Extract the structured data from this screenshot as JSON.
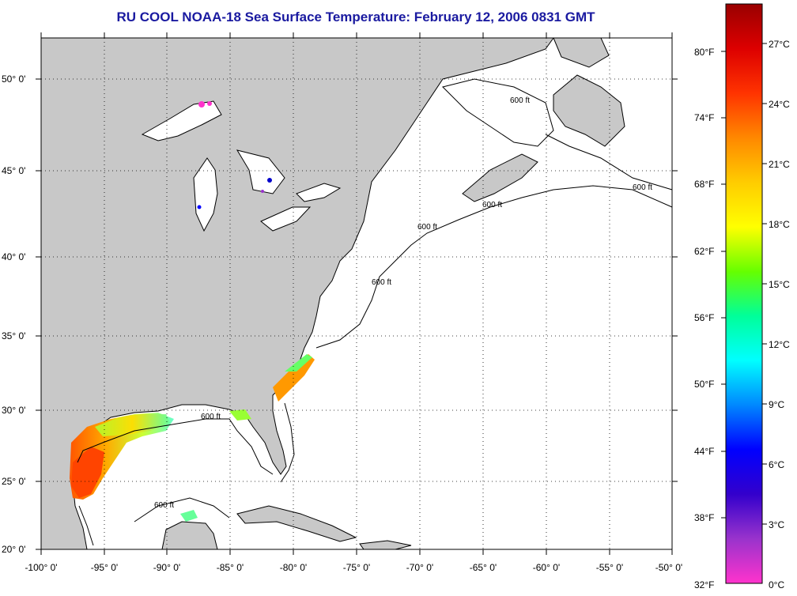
{
  "title": "RU COOL  NOAA-18  Sea Surface Temperature:  February 12, 2006 0831 GMT",
  "lat_labels": [
    "50° 0'",
    "45° 0'",
    "40° 0'",
    "35° 0'",
    "30° 0'",
    "25° 0'",
    "20° 0'"
  ],
  "lon_labels": [
    "-100° 0'",
    "-95° 0'",
    "-90° 0'",
    "-85° 0'",
    "-80° 0'",
    "-75° 0'",
    "-70° 0'",
    "-65° 0'",
    "-60° 0'",
    "-55° 0'",
    "-50° 0'"
  ],
  "isobath_label": "600 ft",
  "colorbar": {
    "fahrenheit": [
      "80°F",
      "74°F",
      "68°F",
      "62°F",
      "56°F",
      "50°F",
      "44°F",
      "38°F",
      "32°F"
    ],
    "celsius": [
      "27°C",
      "24°C",
      "21°C",
      "18°C",
      "15°C",
      "12°C",
      "9°C",
      "6°C",
      "3°C",
      "0°C"
    ],
    "colors": [
      "#ff33cc",
      "#9933cc",
      "#3300cc",
      "#0000ff",
      "#0088ff",
      "#00ffff",
      "#00ff99",
      "#66ff00",
      "#ffff00",
      "#ffcc00",
      "#ff8800",
      "#ff3300",
      "#dd0000",
      "#990000"
    ]
  },
  "colors": {
    "land": "#c8c8c8",
    "water": "#ffffff",
    "title": "#1a1aa0"
  }
}
